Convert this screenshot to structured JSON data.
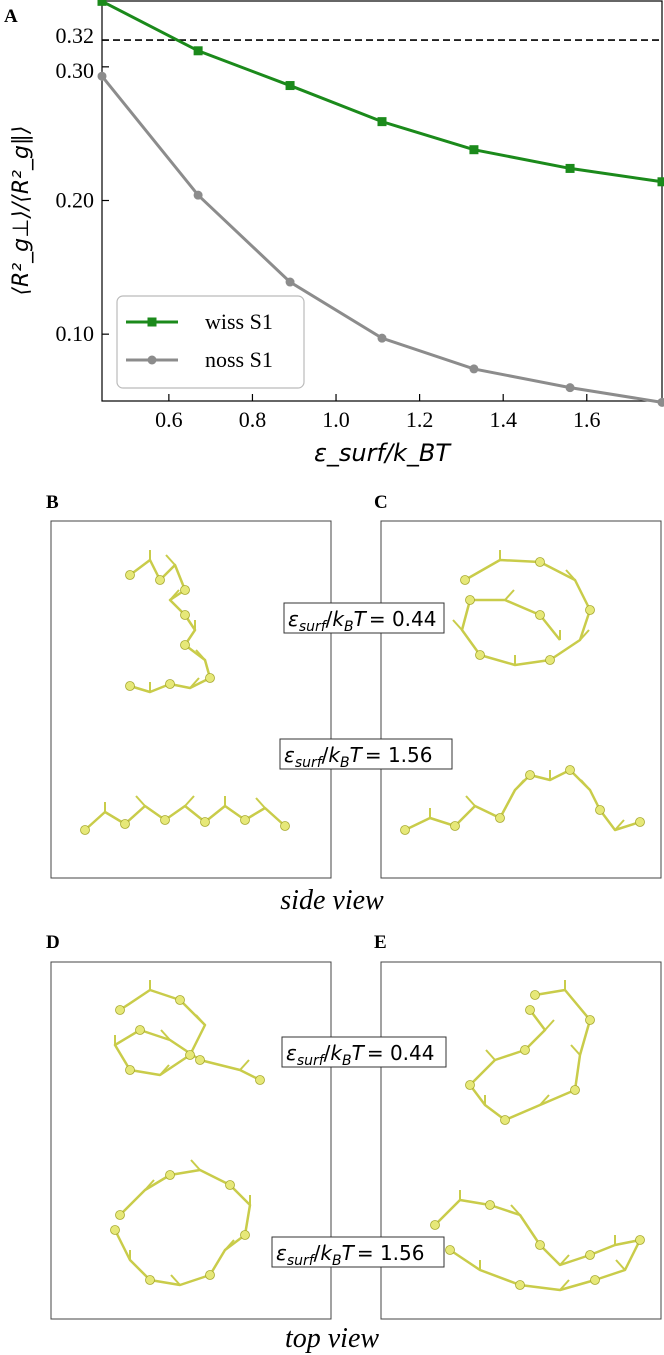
{
  "chart_data": {
    "panel_label": "A",
    "type": "line",
    "xlabel": "ε_surf/k_BT",
    "ylabel": "⟨R²_g⊥⟩/⟨R²_g∥⟩",
    "xlim": [
      0.44,
      1.78
    ],
    "ylim": [
      0.05,
      0.35
    ],
    "xticks": [
      0.6,
      0.8,
      1.0,
      1.2,
      1.4,
      1.6
    ],
    "xtick_labels": [
      "0.6",
      "0.8",
      "1.0",
      "1.2",
      "1.4",
      "1.6"
    ],
    "yticks": [
      0.1,
      0.2,
      0.3,
      0.32
    ],
    "ytick_labels": [
      "0.10",
      "0.20",
      "0.30",
      "0.32"
    ],
    "reference_line": {
      "y": 0.32,
      "style": "dashed",
      "color": "#000000"
    },
    "legend_position": "lower-left",
    "x": [
      0.44,
      0.67,
      0.89,
      1.11,
      1.33,
      1.56,
      1.78
    ],
    "series": [
      {
        "name": "wiss S1",
        "color": "#1b8a1b",
        "marker": "square",
        "values": [
          0.349,
          0.312,
          0.286,
          0.259,
          0.238,
          0.224,
          0.214
        ]
      },
      {
        "name": "noss S1",
        "color": "#8c8c8c",
        "marker": "circle",
        "values": [
          0.293,
          0.204,
          0.139,
          0.097,
          0.074,
          0.06,
          0.049
        ]
      }
    ]
  },
  "panels": {
    "B": "B",
    "C": "C",
    "D": "D",
    "E": "E"
  },
  "labels": {
    "eps_top": "= 0.44",
    "eps_bottom": "= 1.56",
    "side_view": "side view",
    "top_view": "top view"
  },
  "structure_color": "#e6e878"
}
